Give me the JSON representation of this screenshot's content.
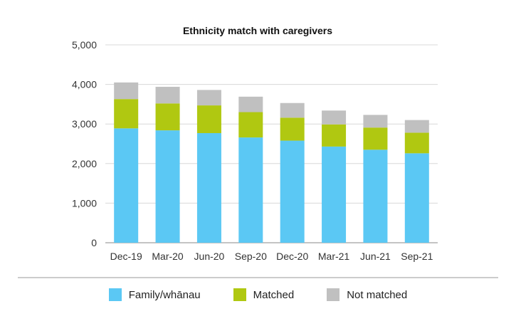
{
  "chart_data": {
    "type": "bar",
    "stacked": true,
    "title": "Ethnicity match with caregivers",
    "categories": [
      "Dec-19",
      "Mar-20",
      "Jun-20",
      "Sep-20",
      "Dec-20",
      "Mar-21",
      "Jun-21",
      "Sep-21"
    ],
    "series": [
      {
        "name": "Family/whānau",
        "color": "#5bc8f4",
        "values": [
          2890,
          2840,
          2770,
          2660,
          2580,
          2430,
          2350,
          2260
        ]
      },
      {
        "name": "Matched",
        "color": "#b0c811",
        "values": [
          740,
          680,
          700,
          640,
          580,
          560,
          560,
          520
        ]
      },
      {
        "name": "Not matched",
        "color": "#c0c0c0",
        "values": [
          420,
          420,
          390,
          390,
          370,
          350,
          320,
          320
        ]
      }
    ],
    "y_ticks": [
      "0",
      "1,000",
      "2,000",
      "3,000",
      "4,000",
      "5,000"
    ],
    "ylim": [
      0,
      5000
    ],
    "grid": true,
    "legend_position": "bottom"
  }
}
